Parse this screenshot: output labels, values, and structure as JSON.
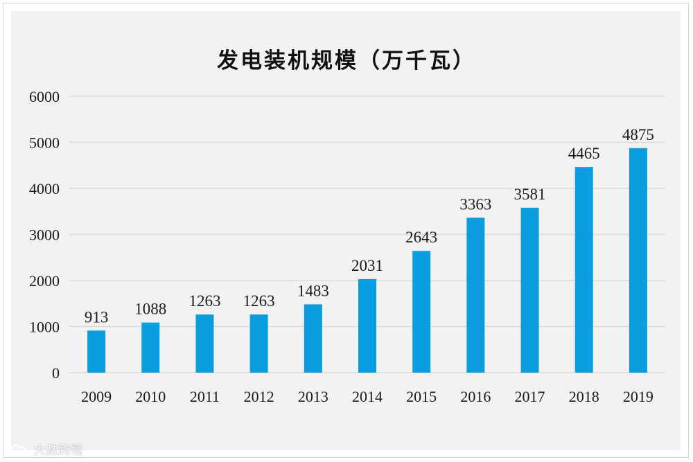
{
  "chart_data": {
    "type": "bar",
    "title": "发电装机规模（万千瓦）",
    "categories": [
      "2009",
      "2010",
      "2011",
      "2012",
      "2013",
      "2014",
      "2015",
      "2016",
      "2017",
      "2018",
      "2019"
    ],
    "values": [
      913,
      1088,
      1263,
      1263,
      1483,
      2031,
      2643,
      3363,
      3581,
      4465,
      4875
    ],
    "ylim": [
      0,
      6000
    ],
    "yticks": [
      0,
      1000,
      2000,
      3000,
      4000,
      5000,
      6000
    ],
    "xlabel": "",
    "ylabel": "",
    "grid": true,
    "legend": "none",
    "bar_color": "#0a9ee0",
    "grid_color": "#d9d9d9"
  },
  "watermark": {
    "icon": "cloud-logo-icon",
    "text": "大數跨境"
  }
}
